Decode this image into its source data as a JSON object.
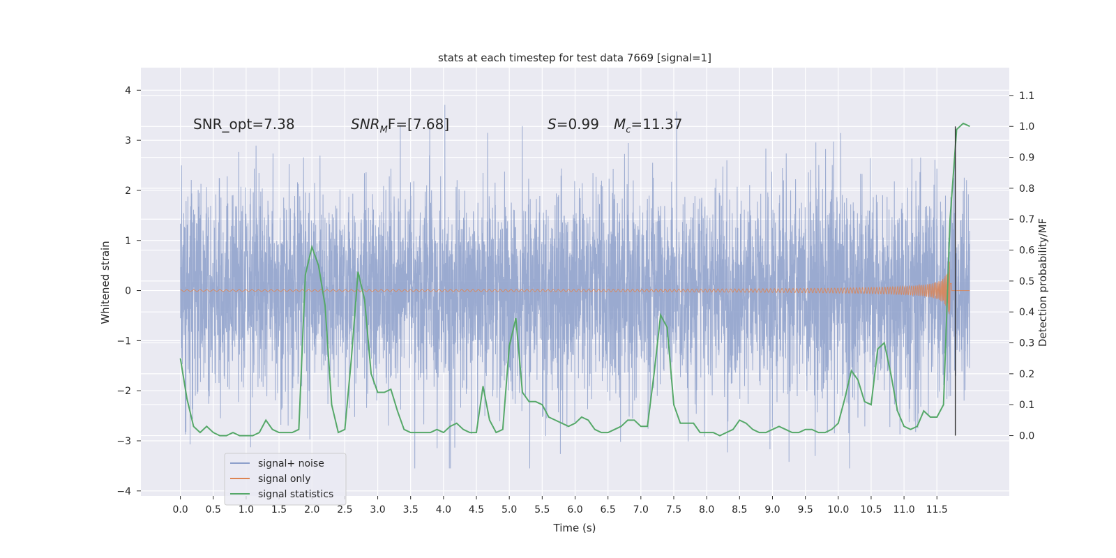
{
  "chart_data": {
    "type": "line",
    "title": "stats at each timestep for test data 7669 [signal=1]",
    "xlabel": "Time (s)",
    "ylabel": "Whitened strain",
    "ylabel_right": "Detection probability/MF",
    "xlim": [
      -0.6,
      12.6
    ],
    "ylim": [
      -4.1,
      4.45
    ],
    "ylim_right": [
      -0.195,
      1.19
    ],
    "x_ticks": [
      "0.0",
      "0.5",
      "1.0",
      "1.5",
      "2.0",
      "2.5",
      "3.0",
      "3.5",
      "4.0",
      "4.5",
      "5.0",
      "5.5",
      "6.0",
      "6.5",
      "7.0",
      "7.5",
      "8.0",
      "8.5",
      "9.0",
      "9.5",
      "10.0",
      "10.5",
      "11.0",
      "11.5"
    ],
    "y_ticks": [
      "4",
      "3",
      "2",
      "1",
      "0",
      "−1",
      "−2",
      "−3",
      "−4"
    ],
    "y_right_ticks": [
      "1.1",
      "1.0",
      "0.9",
      "0.8",
      "0.7",
      "0.6",
      "0.5",
      "0.4",
      "0.3",
      "0.2",
      "0.1",
      "0.0"
    ],
    "annotations": {
      "snr_opt": "SNR_opt=7.38",
      "snr_mf_sym": "SNR",
      "snr_mf_sub": "M",
      "snr_mf_rest": "F=[7.68]",
      "s_sym": "S",
      "s_rest": "=0.99",
      "mc_sym": "M",
      "mc_sub": "c",
      "mc_rest": "=11.37"
    },
    "legend_position": "lower-left",
    "series": [
      {
        "name": "signal+ noise",
        "color": "#8c9fca",
        "x_range": [
          0.0,
          12.0
        ]
      },
      {
        "name": "signal only",
        "color": "#dd8452"
      },
      {
        "name": "signal statistics",
        "color": "#55a868",
        "axis": "right",
        "x": [
          0.0,
          0.1,
          0.2,
          0.3,
          0.4,
          0.5,
          0.6,
          0.7,
          0.8,
          0.9,
          1.0,
          1.1,
          1.2,
          1.3,
          1.4,
          1.5,
          1.6,
          1.7,
          1.8,
          1.9,
          2.0,
          2.1,
          2.2,
          2.3,
          2.4,
          2.5,
          2.6,
          2.7,
          2.8,
          2.9,
          3.0,
          3.1,
          3.2,
          3.3,
          3.4,
          3.5,
          3.6,
          3.7,
          3.8,
          3.9,
          4.0,
          4.1,
          4.2,
          4.3,
          4.4,
          4.5,
          4.6,
          4.7,
          4.8,
          4.9,
          5.0,
          5.1,
          5.2,
          5.3,
          5.4,
          5.5,
          5.6,
          5.7,
          5.8,
          5.9,
          6.0,
          6.1,
          6.2,
          6.3,
          6.4,
          6.5,
          6.6,
          6.7,
          6.8,
          6.9,
          7.0,
          7.1,
          7.2,
          7.3,
          7.4,
          7.5,
          7.6,
          7.7,
          7.8,
          7.9,
          8.0,
          8.1,
          8.2,
          8.3,
          8.4,
          8.5,
          8.6,
          8.7,
          8.8,
          8.9,
          9.0,
          9.1,
          9.2,
          9.3,
          9.4,
          9.5,
          9.6,
          9.7,
          9.8,
          9.9,
          10.0,
          10.1,
          10.2,
          10.3,
          10.4,
          10.5,
          10.6,
          10.7,
          10.8,
          10.9,
          11.0,
          11.1,
          11.2,
          11.3,
          11.4,
          11.5,
          11.6,
          11.7,
          11.8,
          11.9,
          12.0
        ],
        "values": [
          0.25,
          0.12,
          0.03,
          0.01,
          0.03,
          0.01,
          0.0,
          0.0,
          0.01,
          0.0,
          0.0,
          0.0,
          0.01,
          0.05,
          0.02,
          0.01,
          0.01,
          0.01,
          0.02,
          0.52,
          0.61,
          0.55,
          0.42,
          0.1,
          0.01,
          0.02,
          0.25,
          0.53,
          0.44,
          0.2,
          0.14,
          0.14,
          0.15,
          0.08,
          0.02,
          0.01,
          0.01,
          0.01,
          0.01,
          0.02,
          0.01,
          0.03,
          0.04,
          0.02,
          0.01,
          0.01,
          0.16,
          0.05,
          0.01,
          0.02,
          0.29,
          0.38,
          0.14,
          0.11,
          0.11,
          0.1,
          0.06,
          0.05,
          0.04,
          0.03,
          0.04,
          0.06,
          0.05,
          0.02,
          0.01,
          0.01,
          0.02,
          0.03,
          0.05,
          0.05,
          0.03,
          0.03,
          0.2,
          0.39,
          0.35,
          0.1,
          0.04,
          0.04,
          0.04,
          0.01,
          0.01,
          0.01,
          0.0,
          0.01,
          0.02,
          0.05,
          0.04,
          0.02,
          0.01,
          0.01,
          0.02,
          0.03,
          0.02,
          0.01,
          0.01,
          0.02,
          0.02,
          0.01,
          0.01,
          0.02,
          0.04,
          0.12,
          0.21,
          0.18,
          0.11,
          0.1,
          0.28,
          0.3,
          0.2,
          0.08,
          0.03,
          0.02,
          0.03,
          0.08,
          0.06,
          0.06,
          0.1,
          0.7,
          0.99,
          1.01,
          1.0
        ]
      }
    ],
    "vline": {
      "x": 11.78
    }
  }
}
